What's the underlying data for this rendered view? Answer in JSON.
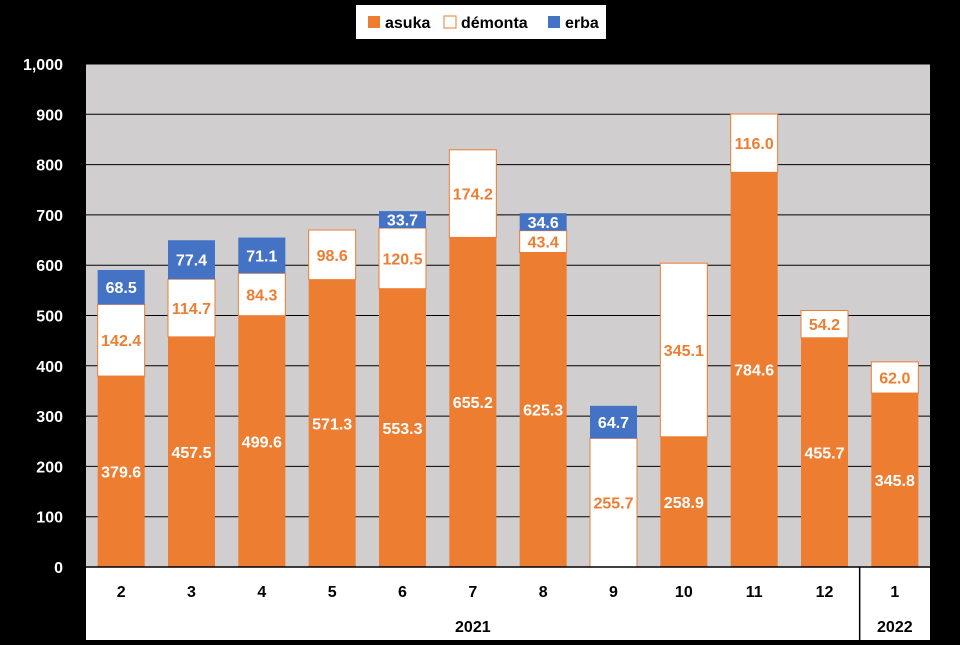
{
  "chart_data": {
    "type": "bar",
    "stacked": true,
    "categories": [
      "2",
      "3",
      "4",
      "5",
      "6",
      "7",
      "8",
      "9",
      "10",
      "11",
      "12",
      "1"
    ],
    "year_groups": [
      {
        "label": "2021",
        "count": 11
      },
      {
        "label": "2022",
        "count": 1
      }
    ],
    "series": [
      {
        "name": "asuka",
        "color": "#ED7D31",
        "values": [
          379.6,
          457.5,
          499.6,
          571.3,
          553.3,
          655.2,
          625.3,
          0,
          258.9,
          784.6,
          455.7,
          345.8
        ]
      },
      {
        "name": "démonta",
        "color": "#FFFFFF",
        "values": [
          142.4,
          114.7,
          84.3,
          98.6,
          120.5,
          174.2,
          43.4,
          255.7,
          345.1,
          116.0,
          54.2,
          62.0
        ]
      },
      {
        "name": "erba",
        "color": "#4472C4",
        "values": [
          68.5,
          77.4,
          71.1,
          null,
          33.7,
          null,
          34.6,
          64.7,
          null,
          null,
          null,
          null
        ]
      }
    ],
    "ylim": [
      0,
      1000
    ],
    "yticks": [
      0,
      100,
      200,
      300,
      400,
      500,
      600,
      700,
      800,
      900,
      1000
    ],
    "ytick_labels": [
      "0",
      "100",
      "200",
      "300",
      "400",
      "500",
      "600",
      "700",
      "800",
      "900",
      "1,000"
    ],
    "grid": true,
    "legend_position": "top-center",
    "title": "",
    "xlabel": "",
    "ylabel": ""
  }
}
